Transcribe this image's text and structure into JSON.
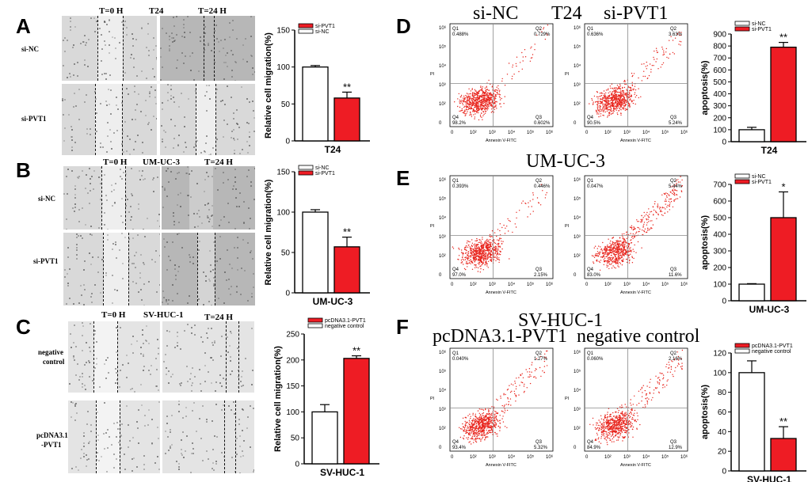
{
  "panels": {
    "A": {
      "letter": "A",
      "t0": "T=0 H",
      "cell": "T24",
      "t24": "T=24 H",
      "row1": "si-NC",
      "row2": "si-PVT1"
    },
    "B": {
      "letter": "B",
      "t0": "T=0 H",
      "cell": "UM-UC-3",
      "t24": "T=24 H",
      "row1": "si-NC",
      "row2": "si-PVT1"
    },
    "C": {
      "letter": "C",
      "t0": "T=0 H",
      "cell": "SV-HUC-1",
      "t24": "T=24 H",
      "row1a": "negative",
      "row1b": "control",
      "row2a": "pcDNA3.1",
      "row2b": "-PVT1"
    },
    "D": {
      "letter": "D",
      "title_left": "si-NC",
      "title_mid": "T24",
      "title_right": "si-PVT1"
    },
    "E": {
      "letter": "E",
      "title_mid": "UM-UC-3"
    },
    "F": {
      "letter": "F",
      "title_mid": "SV-HUC-1",
      "title_left": "pcDNA3.1-PVT1",
      "title_right": "negative control"
    }
  },
  "flow": {
    "xlabel": "Annexin V-FITC",
    "ylabel": "PI",
    "ticks_y": [
      "10⁶",
      "10⁵",
      "10⁴",
      "10³",
      "10²",
      "0"
    ],
    "ticks_x": [
      "0",
      "10²",
      "10³",
      "10⁴",
      "10⁵",
      "10⁶"
    ],
    "D_left": {
      "q1": "0.488%",
      "q2": "0.729%",
      "q3": "0.602%",
      "q4": "98.2%"
    },
    "D_right": {
      "q1": "0.636%",
      "q2": "3.63%",
      "q3": "5.24%",
      "q4": "90.5%"
    },
    "E_left": {
      "q1": "0.393%",
      "q2": "0.446%",
      "q3": "2.15%",
      "q4": "97.0%"
    },
    "E_right": {
      "q1": "0.047%",
      "q2": "5.44%",
      "q3": "11.6%",
      "q4": "83.0%"
    },
    "F_left": {
      "q1": "0.040%",
      "q2": "1.27%",
      "q3": "5.32%",
      "q4": "93.4%"
    },
    "F_right": {
      "q1": "0.060%",
      "q2": "2.16%",
      "q3": "12.9%",
      "q4": "84.9%"
    },
    "quad_labels": {
      "q1": "Q1",
      "q2": "Q2",
      "q3": "Q3",
      "q4": "Q4"
    }
  },
  "chart_data": [
    {
      "id": "A",
      "type": "bar",
      "title": "T24",
      "ylabel": "Relative cell migration(%)",
      "ylim": [
        0,
        150
      ],
      "yticks": [
        0,
        50,
        100,
        150
      ],
      "series": [
        {
          "name": "si-NC",
          "values": [
            100
          ],
          "err": [
            2
          ]
        },
        {
          "name": "si-PVT1",
          "values": [
            58
          ],
          "err": [
            8
          ]
        }
      ],
      "legend": [
        "si-PVT1",
        "si-NC"
      ],
      "annotation": "**",
      "xlabel": "T24"
    },
    {
      "id": "B",
      "type": "bar",
      "title": "UM-UC-3",
      "ylabel": "Relative cell migration(%)",
      "ylim": [
        0,
        150
      ],
      "yticks": [
        0,
        50,
        100,
        150
      ],
      "series": [
        {
          "name": "si-NC",
          "values": [
            100
          ],
          "err": [
            3
          ]
        },
        {
          "name": "si-PVT1",
          "values": [
            57
          ],
          "err": [
            12
          ]
        }
      ],
      "legend": [
        "si-NC",
        "si-PVT1"
      ],
      "annotation": "**",
      "xlabel": "UM-UC-3"
    },
    {
      "id": "C",
      "type": "bar",
      "title": "SV-HUC-1",
      "ylabel": "Relative cell migration(%)",
      "ylim": [
        0,
        250
      ],
      "yticks": [
        0,
        50,
        100,
        150,
        200,
        250
      ],
      "series": [
        {
          "name": "negative control",
          "values": [
            100
          ],
          "err": [
            14
          ]
        },
        {
          "name": "pcDNA3.1-PVT1",
          "values": [
            203
          ],
          "err": [
            5
          ]
        }
      ],
      "legend": [
        "pcDNA3.1-PVT1",
        "negative control"
      ],
      "annotation": "**",
      "xlabel": "SV-HUC-1"
    },
    {
      "id": "D",
      "type": "bar",
      "title": "T24",
      "ylabel": "apoptosis(%)",
      "ylim": [
        0,
        900
      ],
      "yticks": [
        0,
        100,
        200,
        300,
        400,
        500,
        600,
        700,
        800,
        900
      ],
      "series": [
        {
          "name": "si-NC",
          "values": [
            100
          ],
          "err": [
            20
          ]
        },
        {
          "name": "si-PVT1",
          "values": [
            790
          ],
          "err": [
            40
          ]
        }
      ],
      "legend": [
        "si-NC",
        "si-PVT1"
      ],
      "annotation": "**",
      "xlabel": "T24"
    },
    {
      "id": "E",
      "type": "bar",
      "title": "UM-UC-3",
      "ylabel": "apoptosis(%)",
      "ylim": [
        0,
        700
      ],
      "yticks": [
        0,
        100,
        200,
        300,
        400,
        500,
        600,
        700
      ],
      "series": [
        {
          "name": "si-NC",
          "values": [
            100
          ],
          "err": [
            3
          ]
        },
        {
          "name": "si-PVT1",
          "values": [
            500
          ],
          "err": [
            155
          ]
        }
      ],
      "legend": [
        "si-NC",
        "si-PVT1"
      ],
      "annotation": "*",
      "xlabel": "UM-UC-3"
    },
    {
      "id": "F",
      "type": "bar",
      "title": "SV-HUC-1",
      "ylabel": "apoptosis(%)",
      "ylim": [
        0,
        120
      ],
      "yticks": [
        0,
        20,
        40,
        60,
        80,
        100,
        120
      ],
      "series": [
        {
          "name": "negative control",
          "values": [
            100
          ],
          "err": [
            12
          ]
        },
        {
          "name": "pcDNA3.1-PVT1",
          "values": [
            33
          ],
          "err": [
            12
          ]
        }
      ],
      "legend": [
        "pcDNA3.1-PVT1",
        "negative control"
      ],
      "annotation": "**",
      "xlabel": "SV-HUC-1"
    }
  ],
  "colors": {
    "red": "#ee1c24",
    "white": "#ffffff",
    "dot": "#e8241c"
  }
}
